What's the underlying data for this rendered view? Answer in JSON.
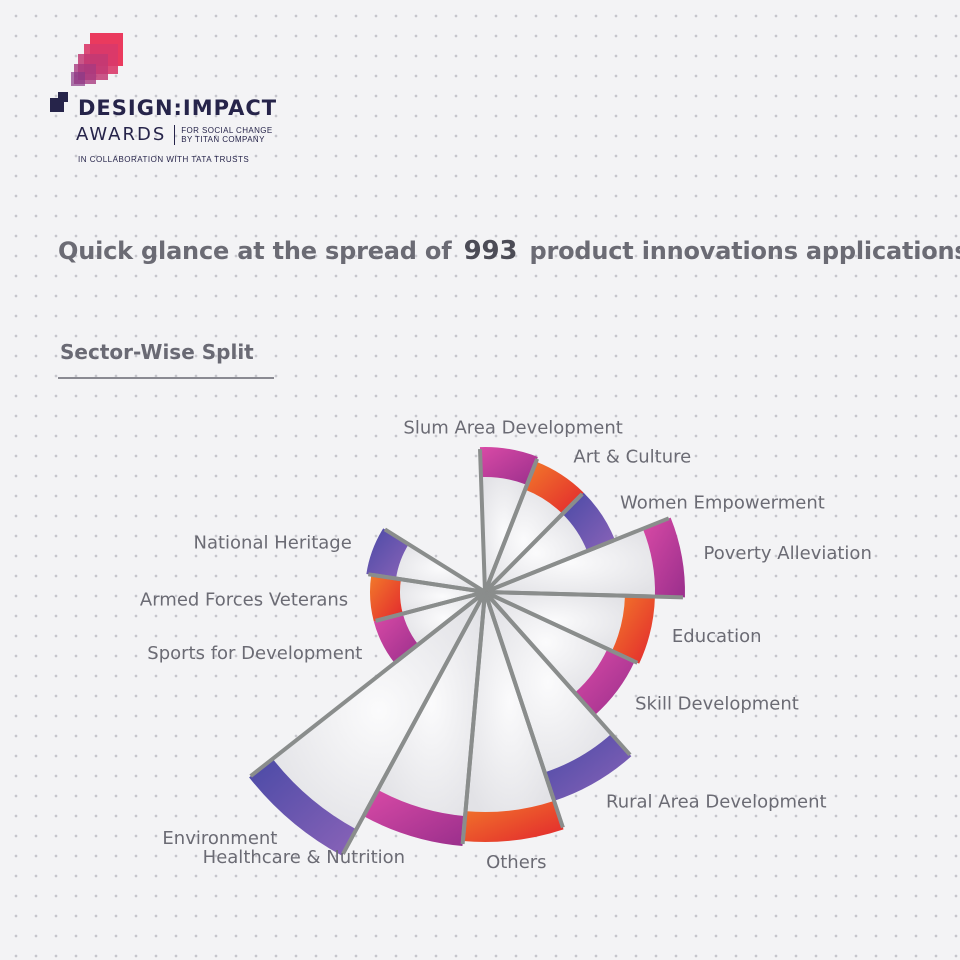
{
  "header": {
    "brand_title": "DESIGN:IMPACT",
    "brand_awards": "AWARDS",
    "brand_tag_line1": "FOR SOCIAL CHANGE",
    "brand_tag_line2": "BY TITAN COMPANY",
    "brand_collab": "IN COLLABORATION WITH TATA TRUSTS"
  },
  "headline": {
    "before": "Quick glance at the spread of",
    "number": "993",
    "after": "product innovations applications."
  },
  "section_title": "Sector-Wise Split",
  "colors": {
    "purple_blue": "#5a4fa8",
    "magenta": "#c33a9a",
    "red_orange": "#e8442e",
    "text": "#6b6b74",
    "brand_navy": "#26244a"
  },
  "chart_data": {
    "type": "polar-area",
    "title": "Sector-Wise Split",
    "categories": [
      "Slum Area Development",
      "Art & Culture",
      "Women Empowerment",
      "Poverty Alleviation",
      "Education",
      "Skill Development",
      "Rural Area Development",
      "Others",
      "Healthcare & Nutrition",
      "Environment",
      "Sports for Development",
      "Armed Forces Veterans",
      "National Heritage"
    ],
    "values": [
      145,
      140,
      140,
      200,
      170,
      165,
      220,
      250,
      255,
      300,
      115,
      115,
      120
    ],
    "segment_colors": [
      "magenta",
      "orange",
      "purple",
      "magenta",
      "orange",
      "magenta",
      "purple",
      "orange",
      "magenta",
      "purple",
      "magenta",
      "orange",
      "purple"
    ]
  }
}
